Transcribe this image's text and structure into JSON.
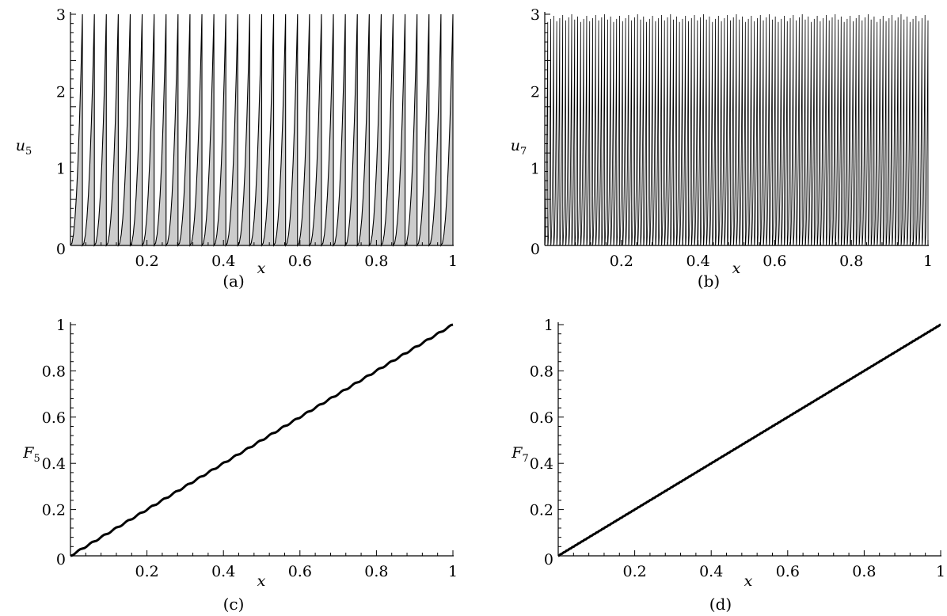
{
  "chart_data": [
    {
      "id": "a",
      "type": "area",
      "caption": "(a)",
      "ylabel": "u",
      "ylabel_sub": "5",
      "xlabel": "x",
      "xlim": [
        0,
        1
      ],
      "ylim": [
        0,
        3
      ],
      "xticks": [
        "0.2",
        "0.4",
        "0.6",
        "0.8",
        "1"
      ],
      "yticks": [
        "0",
        "1",
        "2",
        "3"
      ],
      "filled": true,
      "fill_color": "#cccccc",
      "line_color": "#000000",
      "pattern": "sawtooth",
      "periods": 32,
      "peak": 3
    },
    {
      "id": "b",
      "type": "line",
      "caption": "(b)",
      "ylabel": "u",
      "ylabel_sub": "7",
      "xlabel": "x",
      "xlim": [
        0,
        1
      ],
      "ylim": [
        0,
        3
      ],
      "xticks": [
        "0.2",
        "0.4",
        "0.6",
        "0.8",
        "1"
      ],
      "yticks": [
        "0",
        "1",
        "2",
        "3"
      ],
      "filled": false,
      "line_color": "#000000",
      "pattern": "sawtooth",
      "periods": 128,
      "peak_range": [
        2.9,
        3.0
      ]
    },
    {
      "id": "c",
      "type": "line",
      "caption": "(c)",
      "ylabel": "F",
      "ylabel_sub": "5",
      "xlabel": "x",
      "xlim": [
        0,
        1
      ],
      "ylim": [
        0,
        1
      ],
      "xticks": [
        "0.2",
        "0.4",
        "0.6",
        "0.8",
        "1"
      ],
      "yticks": [
        "0",
        "0.2",
        "0.4",
        "0.6",
        "0.8",
        "1"
      ],
      "line_color": "#000000",
      "pattern": "staircase",
      "steps": 32,
      "points": [
        [
          0,
          0
        ],
        [
          0.25,
          0.25
        ],
        [
          0.5,
          0.5
        ],
        [
          0.75,
          0.75
        ],
        [
          1,
          1
        ]
      ]
    },
    {
      "id": "d",
      "type": "line",
      "caption": "(d)",
      "ylabel": "F",
      "ylabel_sub": "7",
      "xlabel": "x",
      "xlim": [
        0,
        1
      ],
      "ylim": [
        0,
        1
      ],
      "xticks": [
        "0.2",
        "0.4",
        "0.6",
        "0.8",
        "1"
      ],
      "yticks": [
        "0",
        "0.2",
        "0.4",
        "0.6",
        "0.8",
        "1"
      ],
      "line_color": "#000000",
      "pattern": "staircase",
      "steps": 128,
      "points": [
        [
          0,
          0
        ],
        [
          0.5,
          0.5
        ],
        [
          1,
          1
        ]
      ]
    }
  ]
}
